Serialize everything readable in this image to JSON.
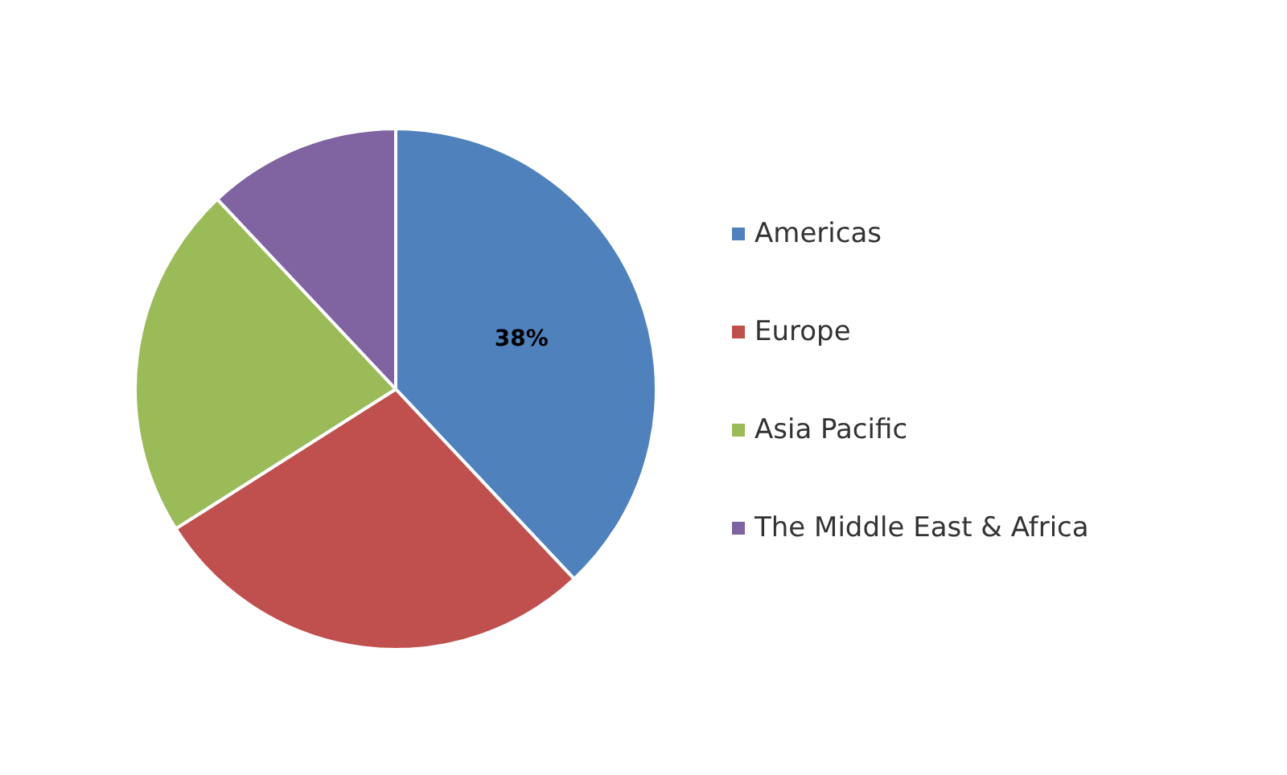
{
  "chart_data": {
    "type": "pie",
    "categories": [
      "Americas",
      "Europe",
      "Asia Pacific",
      "The Middle East & Africa"
    ],
    "values": [
      38,
      28,
      22,
      12
    ],
    "colors": [
      "#4f81bd",
      "#c0504d",
      "#9bbb59",
      "#8064a2"
    ],
    "value_labels": [
      "38%",
      null,
      null,
      null
    ],
    "legend": "right"
  }
}
